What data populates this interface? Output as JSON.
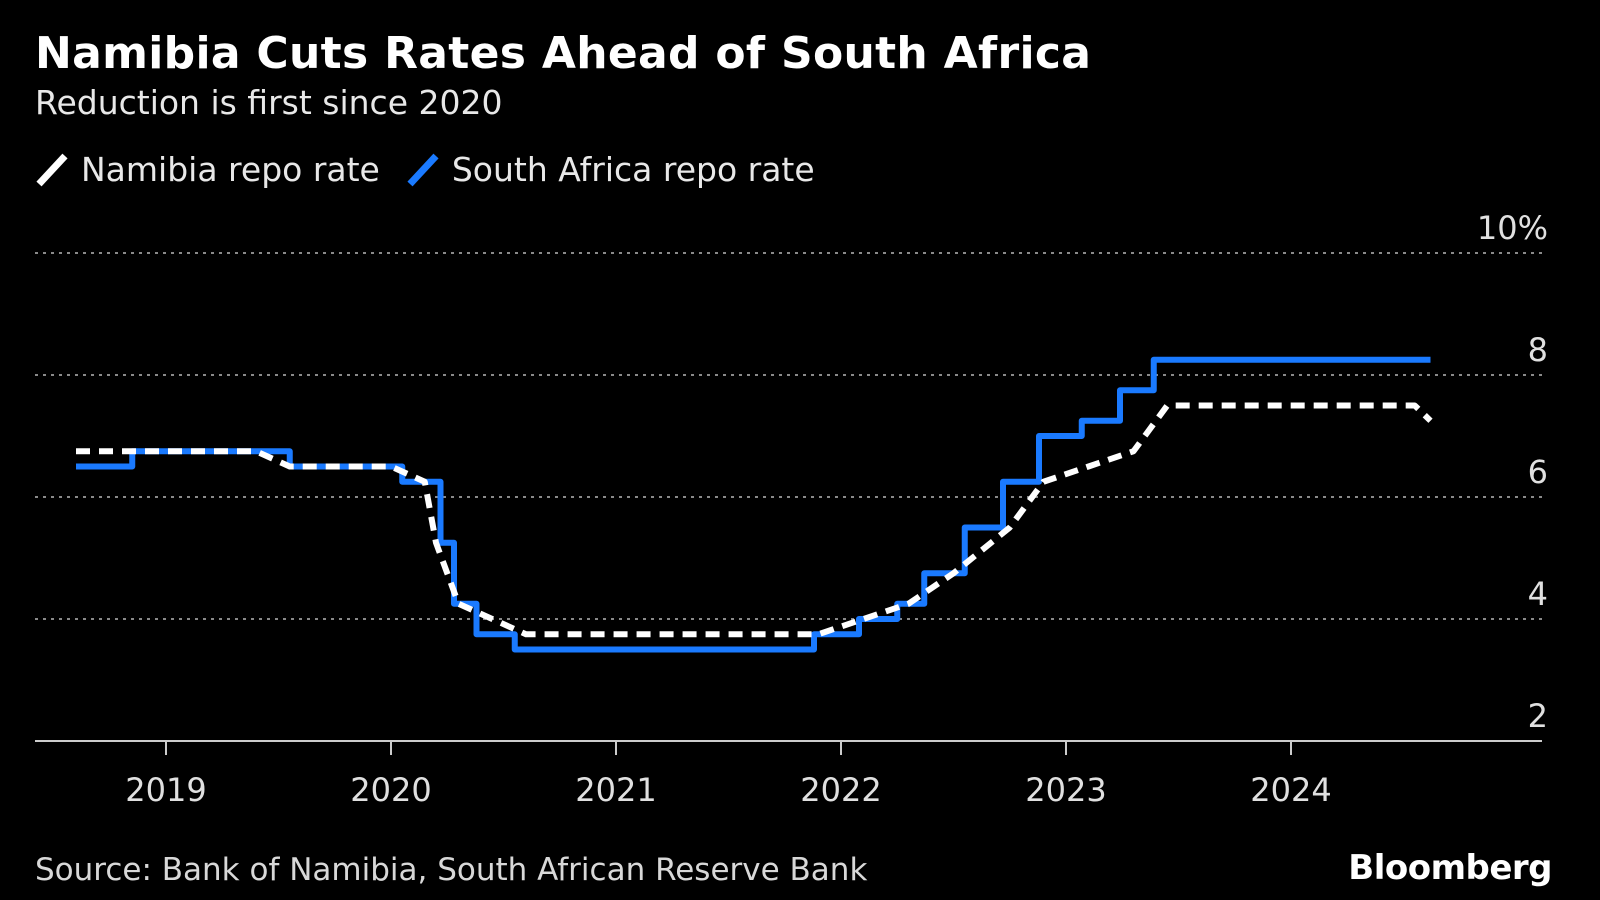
{
  "chart_data": {
    "type": "line",
    "title": "Namibia Cuts Rates Ahead of South Africa",
    "subtitle": "Reduction is first since 2020",
    "xlabel": "",
    "ylabel": "",
    "xlim": [
      2018.6,
      2025.1
    ],
    "ylim": [
      2,
      10
    ],
    "y_ticks": [
      2,
      4,
      6,
      8,
      10
    ],
    "y_tick_labels": [
      "2",
      "4",
      "6",
      "8",
      "10%"
    ],
    "x_ticks": [
      2019,
      2020,
      2021,
      2022,
      2023,
      2024
    ],
    "x_tick_labels": [
      "2019",
      "2020",
      "2021",
      "2022",
      "2023",
      "2024"
    ],
    "grid": true,
    "legend_position": "top-left",
    "series": [
      {
        "name": "Namibia repo rate",
        "color": "#ffffff",
        "style": "dashed",
        "x": [
          2018.6,
          2019.4,
          2019.55,
          2020.0,
          2020.15,
          2020.2,
          2020.3,
          2020.45,
          2020.6,
          2021.9,
          2022.1,
          2022.3,
          2022.5,
          2022.75,
          2022.9,
          2023.1,
          2023.3,
          2023.45,
          2024.55,
          2024.62
        ],
        "y": [
          6.75,
          6.75,
          6.5,
          6.5,
          6.25,
          5.25,
          4.25,
          4.0,
          3.75,
          3.75,
          4.0,
          4.25,
          4.75,
          5.5,
          6.25,
          6.5,
          6.75,
          7.5,
          7.5,
          7.25
        ]
      },
      {
        "name": "South Africa repo rate",
        "color": "#1a7aff",
        "style": "solid",
        "x": [
          2018.6,
          2018.85,
          2019.55,
          2020.05,
          2020.22,
          2020.28,
          2020.38,
          2020.55,
          2021.88,
          2022.08,
          2022.25,
          2022.37,
          2022.55,
          2022.72,
          2022.88,
          2023.07,
          2023.24,
          2023.39,
          2024.62
        ],
        "y": [
          6.5,
          6.75,
          6.5,
          6.25,
          5.25,
          4.25,
          3.75,
          3.5,
          3.75,
          4.0,
          4.25,
          4.75,
          5.5,
          6.25,
          7.0,
          7.25,
          7.75,
          8.25,
          8.25
        ]
      }
    ]
  },
  "footer": {
    "source": "Source: Bank of Namibia, South African Reserve Bank",
    "brand": "Bloomberg"
  }
}
